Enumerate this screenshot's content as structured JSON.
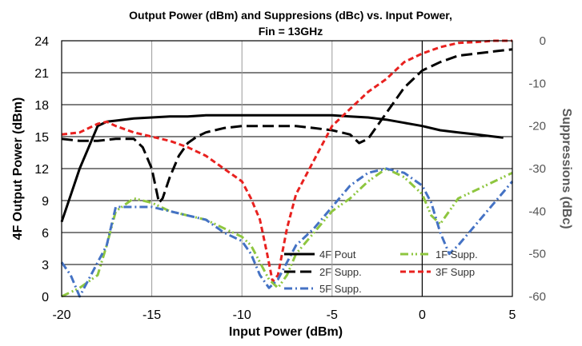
{
  "chart_data": {
    "type": "line",
    "title_line1": "Output Power (dBm) and Suppresions (dBc) vs. Input Power,",
    "title_line2": "Fin = 13GHz",
    "xlabel": "Input Power (dBm)",
    "ylabel": "4F Output Power (dBm)",
    "y2label": "Suppressions (dBc)",
    "xlim": [
      -20,
      5
    ],
    "ylim": [
      0,
      24
    ],
    "y2lim": [
      -60,
      0
    ],
    "x_ticks": [
      "-20",
      "-15",
      "-10",
      "-5",
      "0",
      "5"
    ],
    "y_ticks": [
      "0",
      "3",
      "6",
      "9",
      "12",
      "15",
      "18",
      "21",
      "24"
    ],
    "y2_ticks": [
      "-60",
      "-50",
      "-40",
      "-30",
      "-20",
      "-10",
      "0"
    ],
    "grid": true,
    "legend_position": "bottom-center",
    "series": [
      {
        "name": "4F Pout",
        "axis": "left",
        "color": "#000000",
        "dash": "solid",
        "points": [
          [
            -20,
            7
          ],
          [
            -19.5,
            9.5
          ],
          [
            -19,
            12
          ],
          [
            -18.5,
            14
          ],
          [
            -18,
            16
          ],
          [
            -17.5,
            16.4
          ],
          [
            -17,
            16.5
          ],
          [
            -16,
            16.7
          ],
          [
            -15,
            16.8
          ],
          [
            -14,
            16.9
          ],
          [
            -13,
            16.9
          ],
          [
            -12,
            17
          ],
          [
            -11,
            17
          ],
          [
            -10,
            17
          ],
          [
            -9,
            17
          ],
          [
            -8,
            17
          ],
          [
            -7,
            17
          ],
          [
            -6,
            17
          ],
          [
            -5,
            17
          ],
          [
            -4,
            16.9
          ],
          [
            -3,
            16.8
          ],
          [
            -2,
            16.6
          ],
          [
            -1,
            16.3
          ],
          [
            0,
            16
          ],
          [
            1,
            15.6
          ],
          [
            2,
            15.4
          ],
          [
            3,
            15.2
          ],
          [
            4,
            15
          ],
          [
            4.5,
            14.9
          ]
        ]
      },
      {
        "name": "2F Supp.",
        "axis": "right",
        "color": "#000000",
        "dash": "long",
        "points": [
          [
            -20,
            -23
          ],
          [
            -19,
            -23.5
          ],
          [
            -18,
            -23.5
          ],
          [
            -17,
            -23
          ],
          [
            -16,
            -23
          ],
          [
            -15.5,
            -25
          ],
          [
            -15,
            -30
          ],
          [
            -14.6,
            -38
          ],
          [
            -14.4,
            -37
          ],
          [
            -14,
            -32
          ],
          [
            -13.5,
            -27
          ],
          [
            -13,
            -24
          ],
          [
            -12.5,
            -22.5
          ],
          [
            -12,
            -21.5
          ],
          [
            -11,
            -20.5
          ],
          [
            -10,
            -20
          ],
          [
            -9,
            -20
          ],
          [
            -8,
            -20
          ],
          [
            -7,
            -20
          ],
          [
            -6,
            -20.5
          ],
          [
            -5,
            -21
          ],
          [
            -4,
            -22
          ],
          [
            -3.5,
            -24
          ],
          [
            -3,
            -23
          ],
          [
            -2,
            -17
          ],
          [
            -1,
            -11
          ],
          [
            0,
            -7
          ],
          [
            1,
            -5
          ],
          [
            2,
            -3.5
          ],
          [
            3,
            -3
          ],
          [
            4,
            -2.5
          ],
          [
            5,
            -2
          ]
        ]
      },
      {
        "name": "3F Supp",
        "axis": "right",
        "color": "#e8211f",
        "dash": "short",
        "points": [
          [
            -20,
            -22
          ],
          [
            -19,
            -21.5
          ],
          [
            -18,
            -19.5
          ],
          [
            -17.5,
            -19
          ],
          [
            -17,
            -20
          ],
          [
            -16,
            -21.5
          ],
          [
            -15,
            -22.5
          ],
          [
            -14,
            -23.5
          ],
          [
            -13,
            -25
          ],
          [
            -12,
            -27
          ],
          [
            -11,
            -30
          ],
          [
            -10,
            -33
          ],
          [
            -9.5,
            -37
          ],
          [
            -9,
            -42
          ],
          [
            -8.6,
            -50
          ],
          [
            -8.3,
            -56.5
          ],
          [
            -8,
            -55
          ],
          [
            -7.5,
            -44
          ],
          [
            -7,
            -36
          ],
          [
            -6,
            -28
          ],
          [
            -5,
            -20
          ],
          [
            -4,
            -16
          ],
          [
            -3,
            -12
          ],
          [
            -2,
            -9
          ],
          [
            -1,
            -5
          ],
          [
            0,
            -3
          ],
          [
            1,
            -1.5
          ],
          [
            2,
            -0.5
          ],
          [
            3,
            -0.3
          ],
          [
            4,
            0
          ],
          [
            5,
            0
          ]
        ]
      },
      {
        "name": "1F Supp.",
        "axis": "right",
        "color": "#8ec63f",
        "dash": "dashdotdot",
        "points": [
          [
            -20,
            -60
          ],
          [
            -19,
            -58
          ],
          [
            -18,
            -55
          ],
          [
            -17.5,
            -48
          ],
          [
            -17,
            -40
          ],
          [
            -16,
            -37
          ],
          [
            -15,
            -38
          ],
          [
            -14,
            -40
          ],
          [
            -13,
            -41
          ],
          [
            -12,
            -42
          ],
          [
            -11,
            -44
          ],
          [
            -10,
            -46
          ],
          [
            -9.5,
            -48
          ],
          [
            -9,
            -52
          ],
          [
            -8.5,
            -56
          ],
          [
            -8,
            -58
          ],
          [
            -7.5,
            -55
          ],
          [
            -7,
            -50
          ],
          [
            -6,
            -45
          ],
          [
            -5,
            -40
          ],
          [
            -4,
            -37
          ],
          [
            -3,
            -33
          ],
          [
            -2,
            -30
          ],
          [
            -1,
            -32
          ],
          [
            0,
            -36
          ],
          [
            0.5,
            -41
          ],
          [
            1,
            -43
          ],
          [
            2,
            -37
          ],
          [
            3,
            -35
          ],
          [
            4,
            -33
          ],
          [
            5,
            -31
          ]
        ]
      },
      {
        "name": "5F Supp.",
        "axis": "right",
        "color": "#4472c4",
        "dash": "dashdot",
        "points": [
          [
            -20,
            -52
          ],
          [
            -19.5,
            -55
          ],
          [
            -19,
            -60
          ],
          [
            -18,
            -52
          ],
          [
            -17.5,
            -48
          ],
          [
            -17,
            -39
          ],
          [
            -16,
            -39
          ],
          [
            -15,
            -39
          ],
          [
            -14,
            -40
          ],
          [
            -13,
            -41
          ],
          [
            -12,
            -42
          ],
          [
            -11,
            -45
          ],
          [
            -10,
            -47
          ],
          [
            -9.5,
            -50
          ],
          [
            -9,
            -55
          ],
          [
            -8.5,
            -58
          ],
          [
            -8,
            -56
          ],
          [
            -7.5,
            -52
          ],
          [
            -7,
            -48
          ],
          [
            -6,
            -44
          ],
          [
            -5,
            -39
          ],
          [
            -4,
            -34
          ],
          [
            -3,
            -31
          ],
          [
            -2,
            -30
          ],
          [
            -1,
            -31
          ],
          [
            0,
            -34
          ],
          [
            0.5,
            -38
          ],
          [
            1,
            -45
          ],
          [
            1.5,
            -50
          ],
          [
            2,
            -48
          ],
          [
            3,
            -43
          ],
          [
            4,
            -38
          ],
          [
            5,
            -33
          ]
        ]
      }
    ]
  }
}
